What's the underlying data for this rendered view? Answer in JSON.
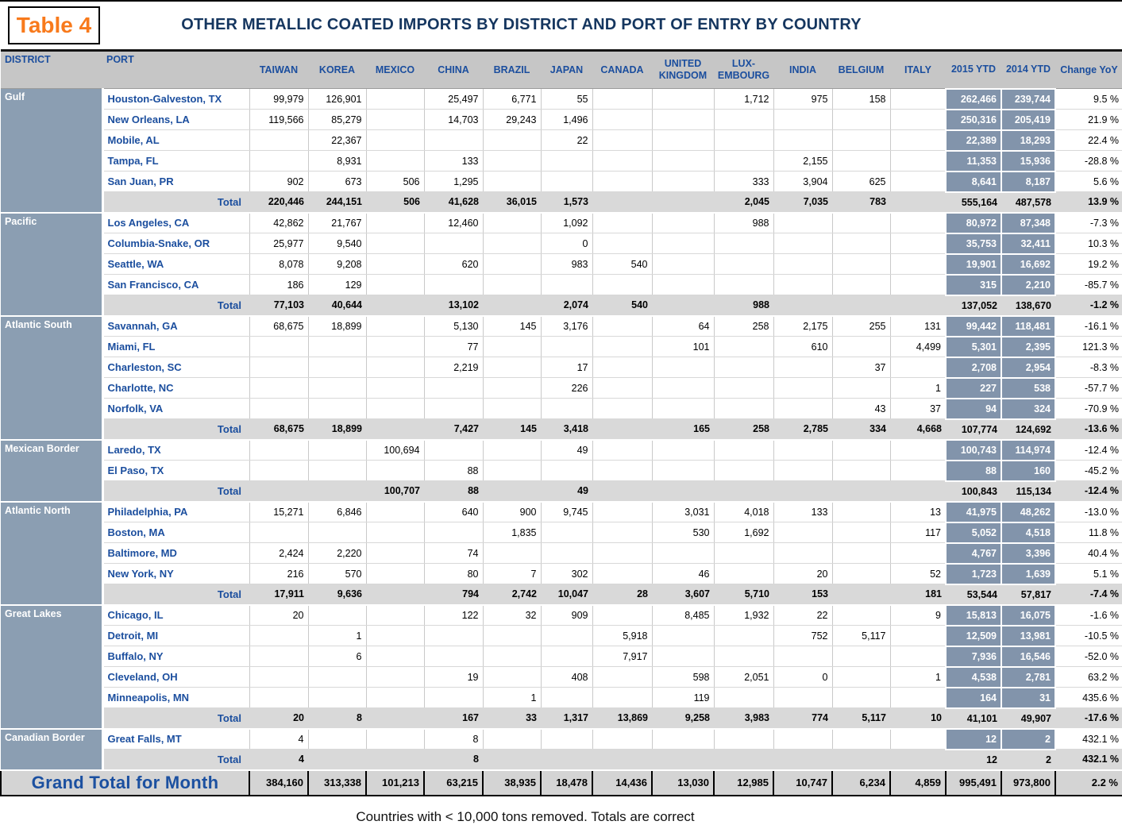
{
  "table_label": "Table 4",
  "title": "OTHER METALLIC COATED IMPORTS BY DISTRICT AND PORT OF ENTRY BY COUNTRY",
  "footer_note": "Countries with < 10,000 tons removed. Totals are correct",
  "total_label": "Total",
  "grand_total_label": "Grand Total for Month",
  "colors": {
    "title_navy": "#15365F",
    "header_text_blue": "#1B4E9E",
    "port_blue": "#1B4E9E",
    "table_label_orange": "#F87A1C",
    "district_bg": "#8B9EB2",
    "ytd_cell_bg": "#8294AB",
    "header_bg": "#C6C6C6",
    "total_row_bg": "#D9D9D9",
    "grand_row_bg": "#D4D4D4"
  },
  "chart_data": {
    "type": "table",
    "title": "OTHER METALLIC COATED IMPORTS BY DISTRICT AND PORT OF ENTRY BY COUNTRY",
    "columns": [
      "DISTRICT",
      "PORT",
      "TAIWAN",
      "KOREA",
      "MEXICO",
      "CHINA",
      "BRAZIL",
      "JAPAN",
      "CANADA",
      "UNITED KINGDOM",
      "LUX-EMBOURG",
      "INDIA",
      "BELGIUM",
      "ITALY",
      "2015 YTD",
      "2014 YTD",
      "Change YoY"
    ],
    "districts": [
      {
        "name": "Gulf",
        "rows": [
          {
            "port": "Houston-Galveston, TX",
            "v": [
              "99,979",
              "126,901",
              "",
              "25,497",
              "6,771",
              "55",
              "",
              "",
              "1,712",
              "975",
              "158",
              ""
            ],
            "y15": "262,466",
            "y14": "239,744",
            "chg": "9.5 %"
          },
          {
            "port": "New Orleans, LA",
            "v": [
              "119,566",
              "85,279",
              "",
              "14,703",
              "29,243",
              "1,496",
              "",
              "",
              "",
              "",
              "",
              ""
            ],
            "y15": "250,316",
            "y14": "205,419",
            "chg": "21.9 %"
          },
          {
            "port": "Mobile, AL",
            "v": [
              "",
              "22,367",
              "",
              "",
              "",
              "22",
              "",
              "",
              "",
              "",
              "",
              ""
            ],
            "y15": "22,389",
            "y14": "18,293",
            "chg": "22.4 %"
          },
          {
            "port": "Tampa, FL",
            "v": [
              "",
              "8,931",
              "",
              "133",
              "",
              "",
              "",
              "",
              "",
              "2,155",
              "",
              ""
            ],
            "y15": "11,353",
            "y14": "15,936",
            "chg": "-28.8 %"
          },
          {
            "port": "San Juan, PR",
            "v": [
              "902",
              "673",
              "506",
              "1,295",
              "",
              "",
              "",
              "",
              "333",
              "3,904",
              "625",
              ""
            ],
            "y15": "8,641",
            "y14": "8,187",
            "chg": "5.6 %"
          }
        ],
        "total": {
          "v": [
            "220,446",
            "244,151",
            "506",
            "41,628",
            "36,015",
            "1,573",
            "",
            "",
            "2,045",
            "7,035",
            "783",
            ""
          ],
          "y15": "555,164",
          "y14": "487,578",
          "chg": "13.9 %"
        }
      },
      {
        "name": "Pacific",
        "rows": [
          {
            "port": "Los Angeles, CA",
            "v": [
              "42,862",
              "21,767",
              "",
              "12,460",
              "",
              "1,092",
              "",
              "",
              "988",
              "",
              "",
              ""
            ],
            "y15": "80,972",
            "y14": "87,348",
            "chg": "-7.3 %"
          },
          {
            "port": "Columbia-Snake, OR",
            "v": [
              "25,977",
              "9,540",
              "",
              "",
              "",
              "0",
              "",
              "",
              "",
              "",
              "",
              ""
            ],
            "y15": "35,753",
            "y14": "32,411",
            "chg": "10.3 %"
          },
          {
            "port": "Seattle, WA",
            "v": [
              "8,078",
              "9,208",
              "",
              "620",
              "",
              "983",
              "540",
              "",
              "",
              "",
              "",
              ""
            ],
            "y15": "19,901",
            "y14": "16,692",
            "chg": "19.2 %"
          },
          {
            "port": "San Francisco, CA",
            "v": [
              "186",
              "129",
              "",
              "",
              "",
              "",
              "",
              "",
              "",
              "",
              "",
              ""
            ],
            "y15": "315",
            "y14": "2,210",
            "chg": "-85.7 %"
          }
        ],
        "total": {
          "v": [
            "77,103",
            "40,644",
            "",
            "13,102",
            "",
            "2,074",
            "540",
            "",
            "988",
            "",
            "",
            ""
          ],
          "y15": "137,052",
          "y14": "138,670",
          "chg": "-1.2 %"
        }
      },
      {
        "name": "Atlantic South",
        "rows": [
          {
            "port": "Savannah, GA",
            "v": [
              "68,675",
              "18,899",
              "",
              "5,130",
              "145",
              "3,176",
              "",
              "64",
              "258",
              "2,175",
              "255",
              "131"
            ],
            "y15": "99,442",
            "y14": "118,481",
            "chg": "-16.1 %"
          },
          {
            "port": "Miami, FL",
            "v": [
              "",
              "",
              "",
              "77",
              "",
              "",
              "",
              "101",
              "",
              "610",
              "",
              "4,499"
            ],
            "y15": "5,301",
            "y14": "2,395",
            "chg": "121.3 %"
          },
          {
            "port": "Charleston, SC",
            "v": [
              "",
              "",
              "",
              "2,219",
              "",
              "17",
              "",
              "",
              "",
              "",
              "37",
              ""
            ],
            "y15": "2,708",
            "y14": "2,954",
            "chg": "-8.3 %"
          },
          {
            "port": "Charlotte, NC",
            "v": [
              "",
              "",
              "",
              "",
              "",
              "226",
              "",
              "",
              "",
              "",
              "",
              "1"
            ],
            "y15": "227",
            "y14": "538",
            "chg": "-57.7 %"
          },
          {
            "port": "Norfolk, VA",
            "v": [
              "",
              "",
              "",
              "",
              "",
              "",
              "",
              "",
              "",
              "",
              "43",
              "37"
            ],
            "y15": "94",
            "y14": "324",
            "chg": "-70.9 %"
          }
        ],
        "total": {
          "v": [
            "68,675",
            "18,899",
            "",
            "7,427",
            "145",
            "3,418",
            "",
            "165",
            "258",
            "2,785",
            "334",
            "4,668"
          ],
          "y15": "107,774",
          "y14": "124,692",
          "chg": "-13.6 %"
        }
      },
      {
        "name": "Mexican Border",
        "rows": [
          {
            "port": "Laredo, TX",
            "v": [
              "",
              "",
              "100,694",
              "",
              "",
              "49",
              "",
              "",
              "",
              "",
              "",
              ""
            ],
            "y15": "100,743",
            "y14": "114,974",
            "chg": "-12.4 %"
          },
          {
            "port": "El Paso, TX",
            "v": [
              "",
              "",
              "",
              "88",
              "",
              "",
              "",
              "",
              "",
              "",
              "",
              ""
            ],
            "y15": "88",
            "y14": "160",
            "chg": "-45.2 %"
          }
        ],
        "total": {
          "v": [
            "",
            "",
            "100,707",
            "88",
            "",
            "49",
            "",
            "",
            "",
            "",
            "",
            ""
          ],
          "y15": "100,843",
          "y14": "115,134",
          "chg": "-12.4 %"
        }
      },
      {
        "name": "Atlantic North",
        "rows": [
          {
            "port": "Philadelphia, PA",
            "v": [
              "15,271",
              "6,846",
              "",
              "640",
              "900",
              "9,745",
              "",
              "3,031",
              "4,018",
              "133",
              "",
              "13"
            ],
            "y15": "41,975",
            "y14": "48,262",
            "chg": "-13.0 %"
          },
          {
            "port": "Boston, MA",
            "v": [
              "",
              "",
              "",
              "",
              "1,835",
              "",
              "",
              "530",
              "1,692",
              "",
              "",
              "117"
            ],
            "y15": "5,052",
            "y14": "4,518",
            "chg": "11.8 %"
          },
          {
            "port": "Baltimore, MD",
            "v": [
              "2,424",
              "2,220",
              "",
              "74",
              "",
              "",
              "",
              "",
              "",
              "",
              "",
              ""
            ],
            "y15": "4,767",
            "y14": "3,396",
            "chg": "40.4 %"
          },
          {
            "port": "New York, NY",
            "v": [
              "216",
              "570",
              "",
              "80",
              "7",
              "302",
              "",
              "46",
              "",
              "20",
              "",
              "52"
            ],
            "y15": "1,723",
            "y14": "1,639",
            "chg": "5.1 %"
          }
        ],
        "total": {
          "v": [
            "17,911",
            "9,636",
            "",
            "794",
            "2,742",
            "10,047",
            "28",
            "3,607",
            "5,710",
            "153",
            "",
            "181"
          ],
          "y15": "53,544",
          "y14": "57,817",
          "chg": "-7.4 %"
        }
      },
      {
        "name": "Great Lakes",
        "rows": [
          {
            "port": "Chicago, IL",
            "v": [
              "20",
              "",
              "",
              "122",
              "32",
              "909",
              "",
              "8,485",
              "1,932",
              "22",
              "",
              "9"
            ],
            "y15": "15,813",
            "y14": "16,075",
            "chg": "-1.6 %"
          },
          {
            "port": "Detroit, MI",
            "v": [
              "",
              "1",
              "",
              "",
              "",
              "",
              "5,918",
              "",
              "",
              "752",
              "5,117",
              ""
            ],
            "y15": "12,509",
            "y14": "13,981",
            "chg": "-10.5 %"
          },
          {
            "port": "Buffalo, NY",
            "v": [
              "",
              "6",
              "",
              "",
              "",
              "",
              "7,917",
              "",
              "",
              "",
              "",
              ""
            ],
            "y15": "7,936",
            "y14": "16,546",
            "chg": "-52.0 %"
          },
          {
            "port": "Cleveland, OH",
            "v": [
              "",
              "",
              "",
              "19",
              "",
              "408",
              "",
              "598",
              "2,051",
              "0",
              "",
              "1"
            ],
            "y15": "4,538",
            "y14": "2,781",
            "chg": "63.2 %"
          },
          {
            "port": "Minneapolis, MN",
            "v": [
              "",
              "",
              "",
              "",
              "1",
              "",
              "",
              "119",
              "",
              "",
              "",
              ""
            ],
            "y15": "164",
            "y14": "31",
            "chg": "435.6 %"
          }
        ],
        "total": {
          "v": [
            "20",
            "8",
            "",
            "167",
            "33",
            "1,317",
            "13,869",
            "9,258",
            "3,983",
            "774",
            "5,117",
            "10"
          ],
          "y15": "41,101",
          "y14": "49,907",
          "chg": "-17.6 %"
        }
      },
      {
        "name": "Canadian Border",
        "rows": [
          {
            "port": "Great Falls, MT",
            "v": [
              "4",
              "",
              "",
              "8",
              "",
              "",
              "",
              "",
              "",
              "",
              "",
              ""
            ],
            "y15": "12",
            "y14": "2",
            "chg": "432.1 %"
          }
        ],
        "total": {
          "v": [
            "4",
            "",
            "",
            "8",
            "",
            "",
            "",
            "",
            "",
            "",
            "",
            ""
          ],
          "y15": "12",
          "y14": "2",
          "chg": "432.1 %"
        }
      }
    ],
    "grand_total": {
      "v": [
        "384,160",
        "313,338",
        "101,213",
        "63,215",
        "38,935",
        "18,478",
        "14,436",
        "13,030",
        "12,985",
        "10,747",
        "6,234",
        "4,859"
      ],
      "y15": "995,491",
      "y14": "973,800",
      "chg": "2.2 %"
    }
  }
}
